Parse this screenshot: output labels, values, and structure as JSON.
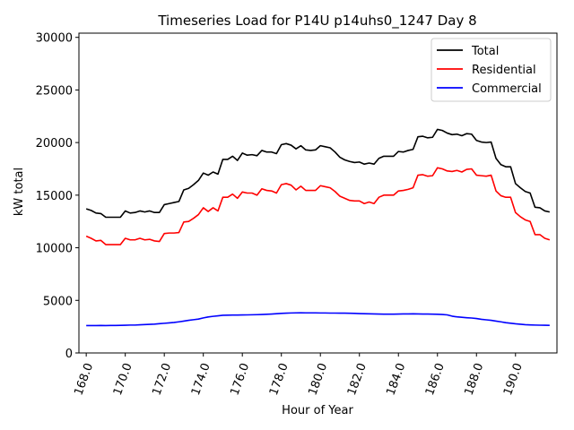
{
  "chart_data": {
    "type": "line",
    "title": "Timeseries Load for P14U p14uhs0_1247  Day 8",
    "xlabel": "Hour of Year",
    "ylabel": "kW total",
    "xlim": [
      167.625,
      192.125
    ],
    "ylim": [
      0,
      30400
    ],
    "xticks": [
      168,
      170,
      172,
      174,
      176,
      178,
      180,
      182,
      184,
      186,
      188,
      190
    ],
    "xtick_labels": [
      "168.0",
      "170.0",
      "172.0",
      "174.0",
      "176.0",
      "178.0",
      "180.0",
      "182.0",
      "184.0",
      "186.0",
      "188.0",
      "190.0"
    ],
    "yticks": [
      0,
      5000,
      10000,
      15000,
      20000,
      25000,
      30000
    ],
    "ytick_labels": [
      "0",
      "5000",
      "10000",
      "15000",
      "20000",
      "25000",
      "30000"
    ],
    "legend_position": "top-right",
    "x": [
      168.0,
      168.25,
      168.5,
      168.75,
      169.0,
      169.25,
      169.5,
      169.75,
      170.0,
      170.25,
      170.5,
      170.75,
      171.0,
      171.25,
      171.5,
      171.75,
      172.0,
      172.25,
      172.5,
      172.75,
      173.0,
      173.25,
      173.5,
      173.75,
      174.0,
      174.25,
      174.5,
      174.75,
      175.0,
      175.25,
      175.5,
      175.75,
      176.0,
      176.25,
      176.5,
      176.75,
      177.0,
      177.25,
      177.5,
      177.75,
      178.0,
      178.25,
      178.5,
      178.75,
      179.0,
      179.25,
      179.5,
      179.75,
      180.0,
      180.25,
      180.5,
      180.75,
      181.0,
      181.25,
      181.5,
      181.75,
      182.0,
      182.25,
      182.5,
      182.75,
      183.0,
      183.25,
      183.5,
      183.75,
      184.0,
      184.25,
      184.5,
      184.75,
      185.0,
      185.25,
      185.5,
      185.75,
      186.0,
      186.25,
      186.5,
      186.75,
      187.0,
      187.25,
      187.5,
      187.75,
      188.0,
      188.25,
      188.5,
      188.75,
      189.0,
      189.25,
      189.5,
      189.75,
      190.0,
      190.25,
      190.5,
      190.75,
      191.0,
      191.25,
      191.5,
      191.75
    ],
    "series": [
      {
        "name": "Total",
        "color": "#000000",
        "values": [
          13700,
          13550,
          13300,
          13250,
          12900,
          12900,
          12900,
          12900,
          13500,
          13300,
          13350,
          13500,
          13400,
          13500,
          13350,
          13350,
          14100,
          14200,
          14300,
          14400,
          15500,
          15650,
          16000,
          16400,
          17100,
          16900,
          17200,
          17000,
          18400,
          18400,
          18700,
          18300,
          19000,
          18800,
          18850,
          18750,
          19250,
          19100,
          19100,
          18950,
          19800,
          19900,
          19750,
          19400,
          19700,
          19300,
          19250,
          19300,
          19700,
          19600,
          19500,
          19100,
          18600,
          18350,
          18200,
          18100,
          18150,
          17950,
          18050,
          17950,
          18500,
          18700,
          18700,
          18700,
          19150,
          19100,
          19250,
          19350,
          20550,
          20600,
          20450,
          20500,
          21250,
          21150,
          20900,
          20750,
          20800,
          20650,
          20850,
          20800,
          20200,
          20050,
          20000,
          20050,
          18500,
          17900,
          17700,
          17700,
          16100,
          15700,
          15350,
          15200,
          13850,
          13800,
          13500,
          13400
        ]
      },
      {
        "name": "Residential",
        "color": "#ff0000",
        "values": [
          11100,
          10900,
          10650,
          10700,
          10300,
          10300,
          10300,
          10300,
          10900,
          10750,
          10750,
          10900,
          10750,
          10800,
          10650,
          10600,
          11350,
          11400,
          11400,
          11450,
          12450,
          12500,
          12800,
          13150,
          13800,
          13450,
          13800,
          13500,
          14800,
          14800,
          15100,
          14700,
          15300,
          15200,
          15200,
          15000,
          15600,
          15450,
          15400,
          15200,
          16000,
          16100,
          15950,
          15500,
          15850,
          15450,
          15450,
          15450,
          15900,
          15800,
          15700,
          15350,
          14900,
          14700,
          14500,
          14450,
          14450,
          14200,
          14350,
          14200,
          14800,
          15000,
          15000,
          15000,
          15400,
          15450,
          15550,
          15700,
          16900,
          16950,
          16800,
          16850,
          17600,
          17500,
          17300,
          17250,
          17350,
          17200,
          17450,
          17500,
          16900,
          16850,
          16800,
          16900,
          15400,
          14950,
          14800,
          14800,
          13350,
          12950,
          12650,
          12500,
          11250,
          11250,
          10900,
          10750
        ]
      },
      {
        "name": "Commercial",
        "color": "#0000ff",
        "values": [
          2600,
          2600,
          2600,
          2610,
          2600,
          2610,
          2610,
          2620,
          2630,
          2650,
          2650,
          2680,
          2700,
          2720,
          2740,
          2780,
          2820,
          2860,
          2900,
          2960,
          3030,
          3100,
          3160,
          3220,
          3330,
          3420,
          3480,
          3530,
          3580,
          3590,
          3600,
          3600,
          3610,
          3620,
          3630,
          3640,
          3660,
          3680,
          3700,
          3730,
          3760,
          3780,
          3800,
          3810,
          3820,
          3810,
          3810,
          3810,
          3800,
          3800,
          3790,
          3790,
          3780,
          3780,
          3770,
          3760,
          3740,
          3730,
          3720,
          3710,
          3700,
          3690,
          3690,
          3690,
          3700,
          3710,
          3710,
          3720,
          3710,
          3700,
          3700,
          3690,
          3680,
          3660,
          3620,
          3500,
          3430,
          3390,
          3350,
          3320,
          3270,
          3200,
          3150,
          3100,
          3030,
          2960,
          2880,
          2830,
          2770,
          2730,
          2690,
          2670,
          2650,
          2640,
          2630,
          2620
        ]
      }
    ]
  }
}
